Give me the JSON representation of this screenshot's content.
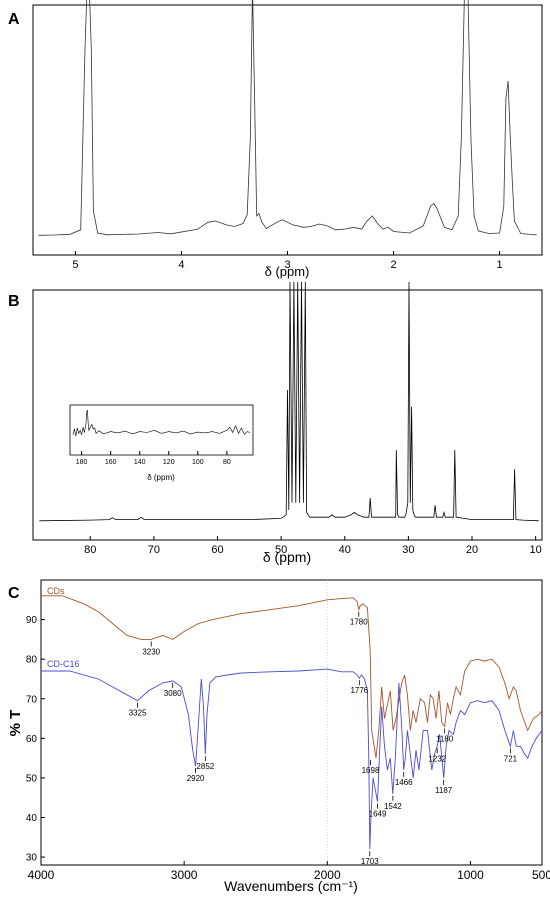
{
  "figure": {
    "panels": [
      {
        "letter": "A",
        "xlabel": "δ (ppm)"
      },
      {
        "letter": "B",
        "xlabel": "δ (ppm)"
      },
      {
        "letter": "C",
        "xlabel": "Wavenumbers (cm⁻¹)",
        "ylabel": "% T"
      }
    ]
  },
  "chart_data": [
    {
      "type": "line",
      "panel": "A",
      "xlabel": "δ (ppm)",
      "ylabel": "",
      "xlim": [
        5.4,
        0.6
      ],
      "xticks": [
        5,
        4,
        3,
        2,
        1
      ],
      "yticks": [],
      "x_reversed": true,
      "grid": false,
      "series": [
        {
          "color": "#333333",
          "x": [
            5.35,
            5.2,
            5.05,
            4.95,
            4.91,
            4.89,
            4.87,
            4.85,
            4.83,
            4.79,
            4.7,
            4.4,
            4.22,
            4.1,
            3.85,
            3.75,
            3.68,
            3.58,
            3.5,
            3.42,
            3.38,
            3.35,
            3.33,
            3.31,
            3.29,
            3.27,
            3.24,
            3.2,
            3.1,
            3.05,
            2.95,
            2.85,
            2.78,
            2.7,
            2.62,
            2.55,
            2.45,
            2.38,
            2.3,
            2.25,
            2.2,
            2.15,
            2.1,
            2.05,
            2.0,
            1.85,
            1.72,
            1.65,
            1.62,
            1.59,
            1.52,
            1.45,
            1.39,
            1.36,
            1.33,
            1.3,
            1.27,
            1.24,
            1.2,
            1.1,
            1.0,
            0.96,
            0.94,
            0.92,
            0.9,
            0.88,
            0.86,
            0.8,
            0.7,
            0.65
          ],
          "y": [
            0.3,
            0.4,
            0.7,
            2.5,
            75,
            100,
            100,
            75,
            10,
            1.2,
            0.5,
            0.8,
            1.4,
            0.9,
            2.7,
            5.5,
            6.0,
            4.5,
            3.8,
            5.0,
            8.5,
            40,
            100,
            55,
            8.0,
            9.0,
            5.5,
            3.0,
            5.5,
            6.5,
            4.5,
            3.5,
            3.8,
            4.8,
            4.0,
            2.5,
            2.8,
            3.5,
            2.8,
            6.0,
            8.0,
            5.0,
            2.8,
            3.5,
            1.8,
            1.2,
            4.0,
            12.0,
            13.0,
            11.0,
            3.5,
            2.5,
            8.0,
            40,
            100,
            100,
            38,
            8.0,
            2.0,
            1.0,
            1.2,
            12,
            55,
            62,
            40,
            22,
            6,
            1.0,
            0.6,
            0.5
          ]
        }
      ]
    },
    {
      "type": "line",
      "panel": "B",
      "xlabel": "δ (ppm)",
      "ylabel": "",
      "xlim": [
        89,
        9
      ],
      "xticks": [
        80,
        70,
        60,
        50,
        40,
        30,
        20,
        10
      ],
      "yticks": [],
      "x_reversed": true,
      "grid": false,
      "series": [
        {
          "color": "#000000",
          "x": [
            88,
            80,
            77,
            76.5,
            76,
            72.5,
            72,
            71.5,
            65,
            55,
            50,
            49.2,
            49.0,
            48.8,
            48.6,
            48.3,
            48.0,
            47.7,
            47.4,
            47.1,
            46.8,
            46.5,
            46.2,
            46.0,
            45.5,
            44,
            42.5,
            42,
            41.5,
            40,
            39,
            38.5,
            38,
            37,
            36.2,
            36.0,
            35.8,
            35,
            33,
            32.0,
            31.9,
            31.7,
            31.5,
            30.6,
            30.4,
            30.1,
            29.9,
            29.7,
            29.5,
            29.3,
            29.1,
            28.9,
            28.7,
            28.5,
            27.5,
            27,
            26.0,
            25.8,
            25.6,
            25,
            24.6,
            24.4,
            24.2,
            23.5,
            22.9,
            22.7,
            22.5,
            20,
            16,
            13.5,
            13.3,
            13.1,
            12,
            9.5
          ],
          "y": [
            0.5,
            0.8,
            1.0,
            1.8,
            1.0,
            1.0,
            2.0,
            1.0,
            1.0,
            1.0,
            1.5,
            3,
            55,
            5,
            100,
            8,
            100,
            8,
            100,
            8,
            100,
            8,
            100,
            4,
            2.0,
            2.0,
            2.0,
            3.0,
            2.0,
            2.0,
            3.0,
            4.0,
            3.0,
            2.0,
            2.0,
            10.0,
            2.0,
            2.0,
            2.0,
            2.0,
            30,
            3.0,
            2.0,
            2.0,
            3.0,
            8.0,
            100,
            8.0,
            48,
            5.0,
            3.0,
            2.0,
            2.0,
            2.0,
            2.0,
            2.0,
            2.0,
            7.0,
            2.0,
            2.0,
            2.0,
            4.0,
            2.0,
            2.0,
            2.0,
            30,
            2.0,
            1.0,
            1.0,
            1.0,
            22,
            1.0,
            0.8,
            0.5
          ]
        }
      ],
      "inset": {
        "xlabel": "δ (ppm)",
        "xlim": [
          188,
          62
        ],
        "xticks": [
          180,
          160,
          140,
          120,
          100,
          80
        ],
        "x_reversed": true,
        "series": [
          {
            "color": "#000000",
            "x": [
              186,
              185,
              184,
              183,
              182,
              181,
              180,
              179,
              178,
              177,
              176.5,
              176,
              175.5,
              175,
              174,
              173,
              172,
              171,
              170,
              168,
              165,
              160,
              155,
              150,
              145,
              140,
              135,
              130,
              125,
              120,
              115,
              110,
              105,
              100,
              95,
              90,
              85,
              80,
              78,
              76,
              74,
              72,
              70,
              68,
              66,
              64
            ],
            "y": [
              45,
              58,
              42,
              60,
              48,
              55,
              45,
              62,
              50,
              70,
              95,
              100,
              70,
              55,
              62,
              68,
              58,
              60,
              48,
              54,
              47,
              52,
              49,
              53,
              47,
              52,
              50,
              55,
              48,
              52,
              49,
              53,
              47,
              51,
              49,
              52,
              48,
              55,
              62,
              50,
              65,
              48,
              60,
              46,
              52,
              50
            ]
          }
        ]
      }
    },
    {
      "type": "line",
      "panel": "C",
      "xlabel": "Wavenumbers (cm⁻¹)",
      "ylabel": "% T",
      "xlim": [
        4000,
        500
      ],
      "ylim": [
        28,
        100
      ],
      "xticks": [
        4000,
        3000,
        2000,
        1000,
        500
      ],
      "yticks": [
        30,
        40,
        50,
        60,
        70,
        80,
        90
      ],
      "x_reversed": true,
      "grid": false,
      "reference_line_x": 2000,
      "series": [
        {
          "name": "CDs",
          "color": "#a5552f",
          "x": [
            4000,
            3850,
            3700,
            3600,
            3500,
            3400,
            3300,
            3230,
            3150,
            3080,
            3000,
            2900,
            2800,
            2600,
            2400,
            2200,
            2000,
            1900,
            1820,
            1790,
            1780,
            1770,
            1750,
            1720,
            1700,
            1690,
            1660,
            1640,
            1620,
            1600,
            1560,
            1540,
            1520,
            1480,
            1460,
            1440,
            1420,
            1400,
            1380,
            1350,
            1320,
            1300,
            1280,
            1260,
            1240,
            1220,
            1200,
            1180,
            1160,
            1140,
            1120,
            1100,
            1070,
            1040,
            1000,
            950,
            900,
            850,
            800,
            760,
            730,
            700,
            680,
            650,
            620,
            600,
            560,
            520,
            500
          ],
          "y": [
            96,
            96,
            94,
            92,
            89,
            86,
            85,
            85,
            86,
            85,
            87,
            89,
            90,
            91.5,
            92.5,
            93.5,
            95,
            95.3,
            95.5,
            94.5,
            92.5,
            93.5,
            94,
            93,
            82,
            62,
            55,
            62,
            73,
            65,
            72,
            62,
            65,
            74,
            76,
            71,
            62,
            67,
            64,
            70,
            69,
            64,
            71,
            70,
            65,
            72,
            64,
            63,
            69,
            66,
            70,
            73,
            71,
            77,
            79.5,
            80,
            79.5,
            80,
            78,
            74,
            70,
            73,
            72,
            67,
            64,
            62,
            65,
            66,
            67
          ]
        },
        {
          "name": "CD-C16",
          "color": "#4c4ccc",
          "x": [
            4000,
            3800,
            3600,
            3500,
            3400,
            3325,
            3250,
            3150,
            3080,
            3020,
            2970,
            2940,
            2920,
            2900,
            2880,
            2865,
            2852,
            2840,
            2820,
            2780,
            2700,
            2600,
            2400,
            2200,
            2000,
            1900,
            1820,
            1790,
            1776,
            1760,
            1740,
            1720,
            1710,
            1703,
            1695,
            1680,
            1660,
            1649,
            1635,
            1620,
            1600,
            1580,
            1560,
            1542,
            1525,
            1500,
            1480,
            1466,
            1455,
            1440,
            1420,
            1400,
            1380,
            1360,
            1330,
            1300,
            1270,
            1250,
            1232,
            1215,
            1200,
            1187,
            1170,
            1150,
            1120,
            1100,
            1070,
            1040,
            1000,
            950,
            900,
            850,
            800,
            760,
            740,
            721,
            700,
            680,
            650,
            620,
            600,
            570,
            540,
            500
          ],
          "y": [
            77,
            77,
            75,
            73,
            71,
            69.5,
            72,
            74,
            74.5,
            73,
            66,
            57,
            53,
            64,
            75,
            68,
            56,
            66,
            74,
            75.5,
            76,
            76.5,
            76.8,
            77,
            77.5,
            76.8,
            76.8,
            76,
            75.2,
            76,
            75,
            72,
            55,
            32,
            40,
            50,
            46,
            44,
            56,
            68,
            58,
            52,
            55,
            46,
            55,
            74,
            63,
            52,
            55,
            62,
            56,
            50,
            57,
            52,
            62,
            62,
            52,
            56,
            58,
            61,
            55,
            50,
            58,
            62,
            61,
            64,
            67,
            66,
            69,
            69.5,
            69,
            69.5,
            67,
            62,
            60,
            58,
            62,
            58,
            58,
            56,
            55,
            58,
            60,
            62
          ]
        }
      ],
      "annotations": [
        {
          "text": "3230",
          "x": 3230,
          "y": 85
        },
        {
          "text": "1780",
          "x": 1780,
          "y": 92.5
        },
        {
          "text": "3325",
          "x": 3325,
          "y": 69.5
        },
        {
          "text": "3080",
          "x": 3080,
          "y": 74.5
        },
        {
          "text": "2920",
          "x": 2920,
          "y": 53
        },
        {
          "text": "2852",
          "x": 2852,
          "y": 56
        },
        {
          "text": "1776",
          "x": 1776,
          "y": 75.2
        },
        {
          "text": "1698",
          "x": 1698,
          "y": 55
        },
        {
          "text": "1703",
          "x": 1703,
          "y": 32
        },
        {
          "text": "1649",
          "x": 1649,
          "y": 44
        },
        {
          "text": "1542",
          "x": 1542,
          "y": 46
        },
        {
          "text": "1466",
          "x": 1466,
          "y": 52
        },
        {
          "text": "1232",
          "x": 1232,
          "y": 58
        },
        {
          "text": "1180",
          "x": 1180,
          "y": 63
        },
        {
          "text": "1187",
          "x": 1187,
          "y": 50
        },
        {
          "text": "721",
          "x": 721,
          "y": 58
        }
      ]
    }
  ]
}
